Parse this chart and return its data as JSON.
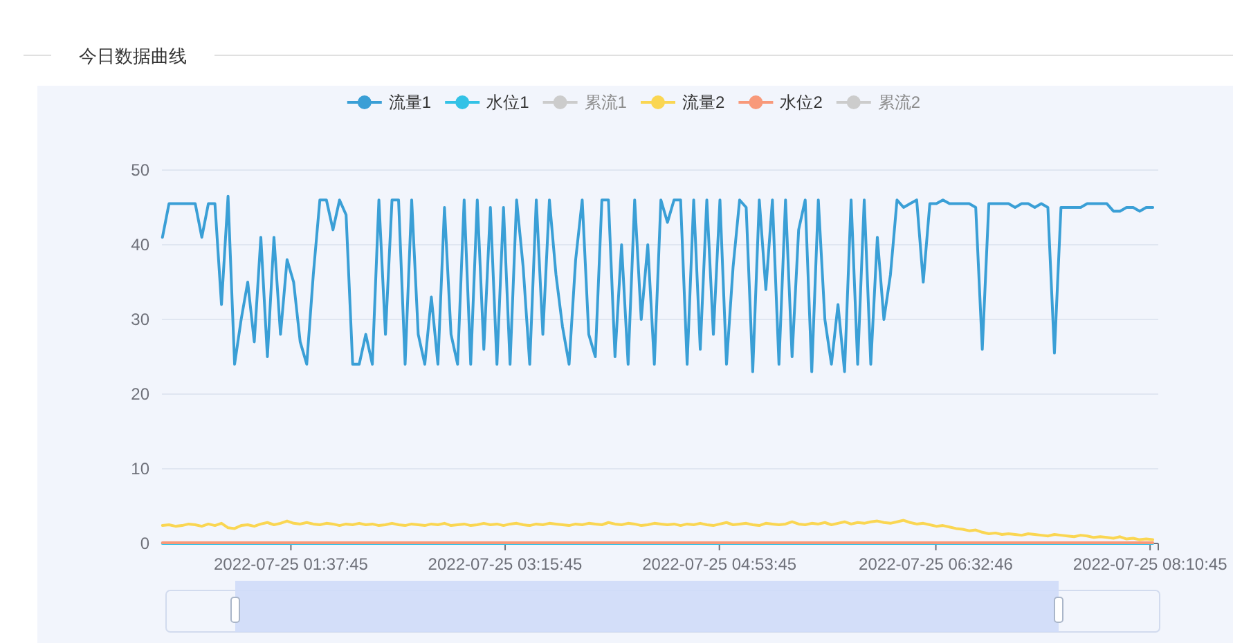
{
  "chart_data": {
    "type": "line",
    "title": "今日数据曲线",
    "legend": "top",
    "grid": "y",
    "ylim": [
      0,
      50
    ],
    "yticks": [
      0,
      10,
      20,
      30,
      40,
      50
    ],
    "xlim": [
      "2022-07-25T00:38:45",
      "2022-07-25T08:14:30"
    ],
    "xticks": [
      {
        "value": "2022-07-25T01:37:45",
        "label": "2022-07-25 01:37:45"
      },
      {
        "value": "2022-07-25T03:15:45",
        "label": "2022-07-25 03:15:45"
      },
      {
        "value": "2022-07-25T04:53:45",
        "label": "2022-07-25 04:53:45"
      },
      {
        "value": "2022-07-25T06:32:46",
        "label": "2022-07-25 06:32:46"
      },
      {
        "value": "2022-07-25T08:10:45",
        "label": "2022-07-25 08:10:45"
      }
    ],
    "x": [
      "2022-07-25T00:39",
      "2022-07-25T00:42",
      "2022-07-25T00:45",
      "2022-07-25T00:48",
      "2022-07-25T00:51",
      "2022-07-25T00:54",
      "2022-07-25T00:57",
      "2022-07-25T01:00",
      "2022-07-25T01:03",
      "2022-07-25T01:06",
      "2022-07-25T01:09",
      "2022-07-25T01:12",
      "2022-07-25T01:15",
      "2022-07-25T01:18",
      "2022-07-25T01:21",
      "2022-07-25T01:24",
      "2022-07-25T01:27",
      "2022-07-25T01:30",
      "2022-07-25T01:33",
      "2022-07-25T01:36",
      "2022-07-25T01:39",
      "2022-07-25T01:42",
      "2022-07-25T01:45",
      "2022-07-25T01:48",
      "2022-07-25T01:51",
      "2022-07-25T01:54",
      "2022-07-25T01:57",
      "2022-07-25T02:00",
      "2022-07-25T02:03",
      "2022-07-25T02:06",
      "2022-07-25T02:09",
      "2022-07-25T02:12",
      "2022-07-25T02:15",
      "2022-07-25T02:18",
      "2022-07-25T02:21",
      "2022-07-25T02:24",
      "2022-07-25T02:27",
      "2022-07-25T02:30",
      "2022-07-25T02:33",
      "2022-07-25T02:36",
      "2022-07-25T02:39",
      "2022-07-25T02:42",
      "2022-07-25T02:45",
      "2022-07-25T02:48",
      "2022-07-25T02:51",
      "2022-07-25T02:54",
      "2022-07-25T02:57",
      "2022-07-25T03:00",
      "2022-07-25T03:03",
      "2022-07-25T03:06",
      "2022-07-25T03:09",
      "2022-07-25T03:12",
      "2022-07-25T03:15",
      "2022-07-25T03:18",
      "2022-07-25T03:21",
      "2022-07-25T03:24",
      "2022-07-25T03:27",
      "2022-07-25T03:30",
      "2022-07-25T03:33",
      "2022-07-25T03:36",
      "2022-07-25T03:39",
      "2022-07-25T03:42",
      "2022-07-25T03:45",
      "2022-07-25T03:48",
      "2022-07-25T03:51",
      "2022-07-25T03:54",
      "2022-07-25T03:57",
      "2022-07-25T04:00",
      "2022-07-25T04:03",
      "2022-07-25T04:06",
      "2022-07-25T04:09",
      "2022-07-25T04:12",
      "2022-07-25T04:15",
      "2022-07-25T04:18",
      "2022-07-25T04:21",
      "2022-07-25T04:24",
      "2022-07-25T04:27",
      "2022-07-25T04:30",
      "2022-07-25T04:33",
      "2022-07-25T04:36",
      "2022-07-25T04:39",
      "2022-07-25T04:42",
      "2022-07-25T04:45",
      "2022-07-25T04:48",
      "2022-07-25T04:51",
      "2022-07-25T04:54",
      "2022-07-25T04:57",
      "2022-07-25T05:00",
      "2022-07-25T05:03",
      "2022-07-25T05:06",
      "2022-07-25T05:09",
      "2022-07-25T05:12",
      "2022-07-25T05:15",
      "2022-07-25T05:18",
      "2022-07-25T05:21",
      "2022-07-25T05:24",
      "2022-07-25T05:27",
      "2022-07-25T05:30",
      "2022-07-25T05:33",
      "2022-07-25T05:36",
      "2022-07-25T05:39",
      "2022-07-25T05:42",
      "2022-07-25T05:45",
      "2022-07-25T05:48",
      "2022-07-25T05:51",
      "2022-07-25T05:54",
      "2022-07-25T05:57",
      "2022-07-25T06:00",
      "2022-07-25T06:03",
      "2022-07-25T06:06",
      "2022-07-25T06:09",
      "2022-07-25T06:12",
      "2022-07-25T06:15",
      "2022-07-25T06:18",
      "2022-07-25T06:21",
      "2022-07-25T06:24",
      "2022-07-25T06:27",
      "2022-07-25T06:30",
      "2022-07-25T06:33",
      "2022-07-25T06:36",
      "2022-07-25T06:39",
      "2022-07-25T06:42",
      "2022-07-25T06:45",
      "2022-07-25T06:48",
      "2022-07-25T06:51",
      "2022-07-25T06:54",
      "2022-07-25T06:57",
      "2022-07-25T07:00",
      "2022-07-25T07:03",
      "2022-07-25T07:06",
      "2022-07-25T07:09",
      "2022-07-25T07:12",
      "2022-07-25T07:15",
      "2022-07-25T07:18",
      "2022-07-25T07:21",
      "2022-07-25T07:24",
      "2022-07-25T07:27",
      "2022-07-25T07:30",
      "2022-07-25T07:33",
      "2022-07-25T07:36",
      "2022-07-25T07:39",
      "2022-07-25T07:42",
      "2022-07-25T07:45",
      "2022-07-25T07:48",
      "2022-07-25T07:51",
      "2022-07-25T07:54",
      "2022-07-25T07:57",
      "2022-07-25T08:00",
      "2022-07-25T08:03",
      "2022-07-25T08:06",
      "2022-07-25T08:09",
      "2022-07-25T08:12"
    ],
    "series": [
      {
        "name": "流量1",
        "color": "#3a9fd6",
        "values": [
          41,
          45.5,
          45.5,
          45.5,
          45.5,
          45.5,
          41,
          45.5,
          45.5,
          32,
          46.5,
          24,
          30,
          35,
          27,
          41,
          25,
          41,
          28,
          38,
          35,
          27,
          24,
          36,
          46,
          46,
          42,
          46,
          44,
          24,
          24,
          28,
          24,
          46,
          28,
          46,
          46,
          24,
          46,
          28,
          24,
          33,
          24,
          45,
          28,
          24,
          46,
          24,
          46,
          26,
          45,
          24,
          45,
          24,
          46,
          37,
          24,
          46,
          28,
          46,
          36,
          29,
          24,
          38,
          46,
          28,
          25,
          46,
          46,
          25,
          40,
          24,
          46,
          30,
          40,
          24,
          46,
          43,
          46,
          46,
          24,
          46,
          26,
          46,
          28,
          46,
          24,
          37,
          46,
          45,
          23,
          46,
          34,
          46,
          24,
          46,
          25,
          42,
          46,
          23,
          46,
          30,
          24,
          32,
          23,
          46,
          24,
          46,
          24,
          41,
          30,
          36,
          46,
          45,
          45.5,
          46,
          35,
          45.5,
          45.5,
          46,
          45.5,
          45.5,
          45.5,
          45.5,
          45,
          26,
          45.5,
          45.5,
          45.5,
          45.5,
          45,
          45.5,
          45.5,
          45,
          45.5,
          45,
          25.5,
          45,
          45,
          45,
          45,
          45.5,
          45.5,
          45.5,
          45.5,
          44.5,
          44.5,
          45,
          45,
          44.5,
          45,
          45
        ]
      },
      {
        "name": "水位1",
        "color": "#33c2e6",
        "x": [
          "2022-07-25T00:39",
          "2022-07-25T08:12"
        ],
        "values": [
          0,
          0
        ]
      },
      {
        "name": "累流1",
        "color": "#cccccc",
        "values": [
          null,
          null,
          null,
          null,
          null,
          null,
          null,
          null,
          null,
          null,
          null,
          null,
          null,
          null,
          null,
          null,
          null,
          null,
          null,
          null,
          null,
          null,
          null,
          null,
          null,
          null,
          null,
          null,
          null,
          null,
          null,
          null,
          null,
          null,
          null,
          null,
          null,
          null,
          null,
          null,
          null,
          null,
          null,
          null,
          null,
          null,
          null,
          null,
          null,
          null,
          null,
          null,
          null,
          null,
          null,
          null,
          null,
          null,
          null,
          null,
          null,
          null,
          null,
          null,
          null,
          null,
          null,
          null,
          null,
          null,
          null,
          null,
          null,
          null,
          null,
          null,
          null,
          null,
          null,
          null,
          null,
          null,
          null,
          null,
          null,
          null,
          null,
          null,
          null,
          null,
          null,
          null,
          null,
          null,
          null,
          null,
          null,
          null,
          null,
          null,
          null,
          null,
          null,
          null,
          null,
          null,
          null,
          null,
          null,
          null,
          null,
          null,
          null,
          null,
          null,
          null,
          null,
          null,
          null,
          null,
          null,
          null,
          null,
          null,
          null,
          null,
          null,
          null,
          null,
          null,
          null,
          null,
          null,
          null,
          null,
          null,
          null,
          null,
          null,
          null,
          null,
          null,
          null,
          null,
          null,
          null,
          null,
          null,
          null,
          null,
          null,
          null
        ]
      },
      {
        "name": "流量2",
        "color": "#fad652",
        "values": [
          2.4,
          2.5,
          2.3,
          2.4,
          2.6,
          2.5,
          2.3,
          2.6,
          2.4,
          2.7,
          2.1,
          2.0,
          2.4,
          2.5,
          2.3,
          2.6,
          2.8,
          2.5,
          2.7,
          3.0,
          2.7,
          2.6,
          2.8,
          2.6,
          2.5,
          2.7,
          2.6,
          2.4,
          2.6,
          2.5,
          2.7,
          2.5,
          2.6,
          2.4,
          2.5,
          2.7,
          2.5,
          2.4,
          2.6,
          2.5,
          2.4,
          2.6,
          2.5,
          2.7,
          2.4,
          2.5,
          2.6,
          2.4,
          2.5,
          2.7,
          2.5,
          2.6,
          2.4,
          2.6,
          2.7,
          2.5,
          2.4,
          2.6,
          2.5,
          2.7,
          2.6,
          2.5,
          2.4,
          2.6,
          2.5,
          2.7,
          2.6,
          2.5,
          2.8,
          2.6,
          2.5,
          2.7,
          2.6,
          2.4,
          2.5,
          2.7,
          2.6,
          2.5,
          2.6,
          2.4,
          2.6,
          2.5,
          2.7,
          2.5,
          2.4,
          2.6,
          2.8,
          2.5,
          2.6,
          2.7,
          2.5,
          2.4,
          2.7,
          2.6,
          2.5,
          2.6,
          2.9,
          2.6,
          2.5,
          2.7,
          2.6,
          2.8,
          2.5,
          2.7,
          2.9,
          2.6,
          2.8,
          2.7,
          2.9,
          3.0,
          2.8,
          2.7,
          2.9,
          3.1,
          2.8,
          2.6,
          2.7,
          2.5,
          2.3,
          2.4,
          2.2,
          2.0,
          1.9,
          1.7,
          1.8,
          1.5,
          1.3,
          1.4,
          1.2,
          1.3,
          1.2,
          1.1,
          1.3,
          1.2,
          1.1,
          1.0,
          1.2,
          1.1,
          1.0,
          0.9,
          1.1,
          1.0,
          0.8,
          0.9,
          0.8,
          0.7,
          0.9,
          0.6,
          0.7,
          0.5,
          0.6,
          0.5
        ]
      },
      {
        "name": "水位2",
        "color": "#f8997a",
        "x": [
          "2022-07-25T00:39",
          "2022-07-25T08:12"
        ],
        "values": [
          0.1,
          0.1
        ]
      },
      {
        "name": "累流2",
        "color": "#cccccc",
        "values": [
          null,
          null,
          null,
          null,
          null,
          null,
          null,
          null,
          null,
          null,
          null,
          null,
          null,
          null,
          null,
          null,
          null,
          null,
          null,
          null,
          null,
          null,
          null,
          null,
          null,
          null,
          null,
          null,
          null,
          null,
          null,
          null,
          null,
          null,
          null,
          null,
          null,
          null,
          null,
          null,
          null,
          null,
          null,
          null,
          null,
          null,
          null,
          null,
          null,
          null,
          null,
          null,
          null,
          null,
          null,
          null,
          null,
          null,
          null,
          null,
          null,
          null,
          null,
          null,
          null,
          null,
          null,
          null,
          null,
          null,
          null,
          null,
          null,
          null,
          null,
          null,
          null,
          null,
          null,
          null,
          null,
          null,
          null,
          null,
          null,
          null,
          null,
          null,
          null,
          null,
          null,
          null,
          null,
          null,
          null,
          null,
          null,
          null,
          null,
          null,
          null,
          null,
          null,
          null,
          null,
          null,
          null,
          null,
          null,
          null,
          null,
          null,
          null,
          null,
          null,
          null,
          null,
          null,
          null,
          null,
          null,
          null,
          null,
          null,
          null,
          null,
          null,
          null,
          null,
          null,
          null,
          null,
          null,
          null,
          null,
          null,
          null,
          null,
          null,
          null,
          null,
          null,
          null,
          null,
          null,
          null,
          null,
          null,
          null,
          null,
          null,
          null
        ]
      }
    ]
  }
}
